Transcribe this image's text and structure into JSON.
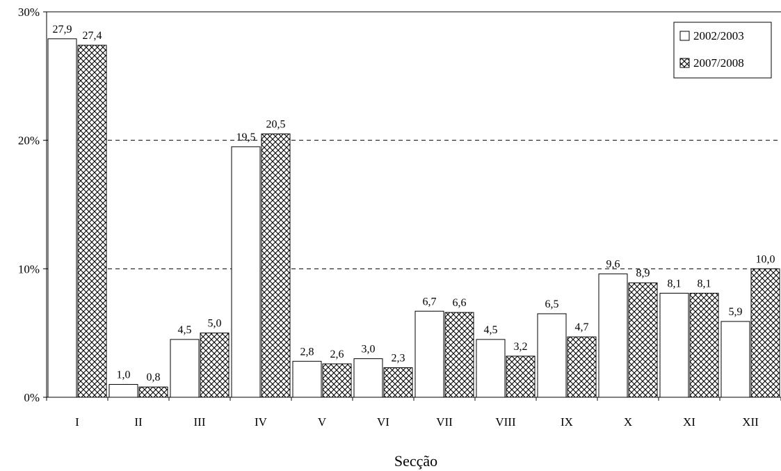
{
  "chart_data": {
    "type": "bar",
    "title": "",
    "xlabel": "Secção",
    "ylabel": "",
    "ylim": [
      0,
      30
    ],
    "yticks": [
      "0%",
      "10%",
      "20%",
      "30%"
    ],
    "grid": "dashed horizontal at 10% and 20%",
    "legend_position": "top-right",
    "categories": [
      "I",
      "II",
      "III",
      "IV",
      "V",
      "VI",
      "VII",
      "VIII",
      "IX",
      "X",
      "XI",
      "XII"
    ],
    "series": [
      {
        "name": "2002/2003",
        "fill": "white",
        "values": [
          27.9,
          1.0,
          4.5,
          19.5,
          2.8,
          3.0,
          6.7,
          4.5,
          6.5,
          9.6,
          8.1,
          5.9
        ],
        "labels": [
          "27,9",
          "1,0",
          "4,5",
          "19,5",
          "2,8",
          "3,0",
          "6,7",
          "4,5",
          "6,5",
          "9,6",
          "8,1",
          "5,9"
        ]
      },
      {
        "name": "2007/2008",
        "fill": "crosshatch",
        "values": [
          27.4,
          0.8,
          5.0,
          20.5,
          2.6,
          2.3,
          6.6,
          3.2,
          4.7,
          8.9,
          8.1,
          10.0
        ],
        "labels": [
          "27,4",
          "0,8",
          "5,0",
          "20,5",
          "2,6",
          "2,3",
          "6,6",
          "3,2",
          "4,7",
          "8,9",
          "8,1",
          "10,0"
        ]
      }
    ]
  },
  "colors": {
    "stroke": "#000000",
    "background": "#ffffff",
    "hatch": "#000000"
  }
}
